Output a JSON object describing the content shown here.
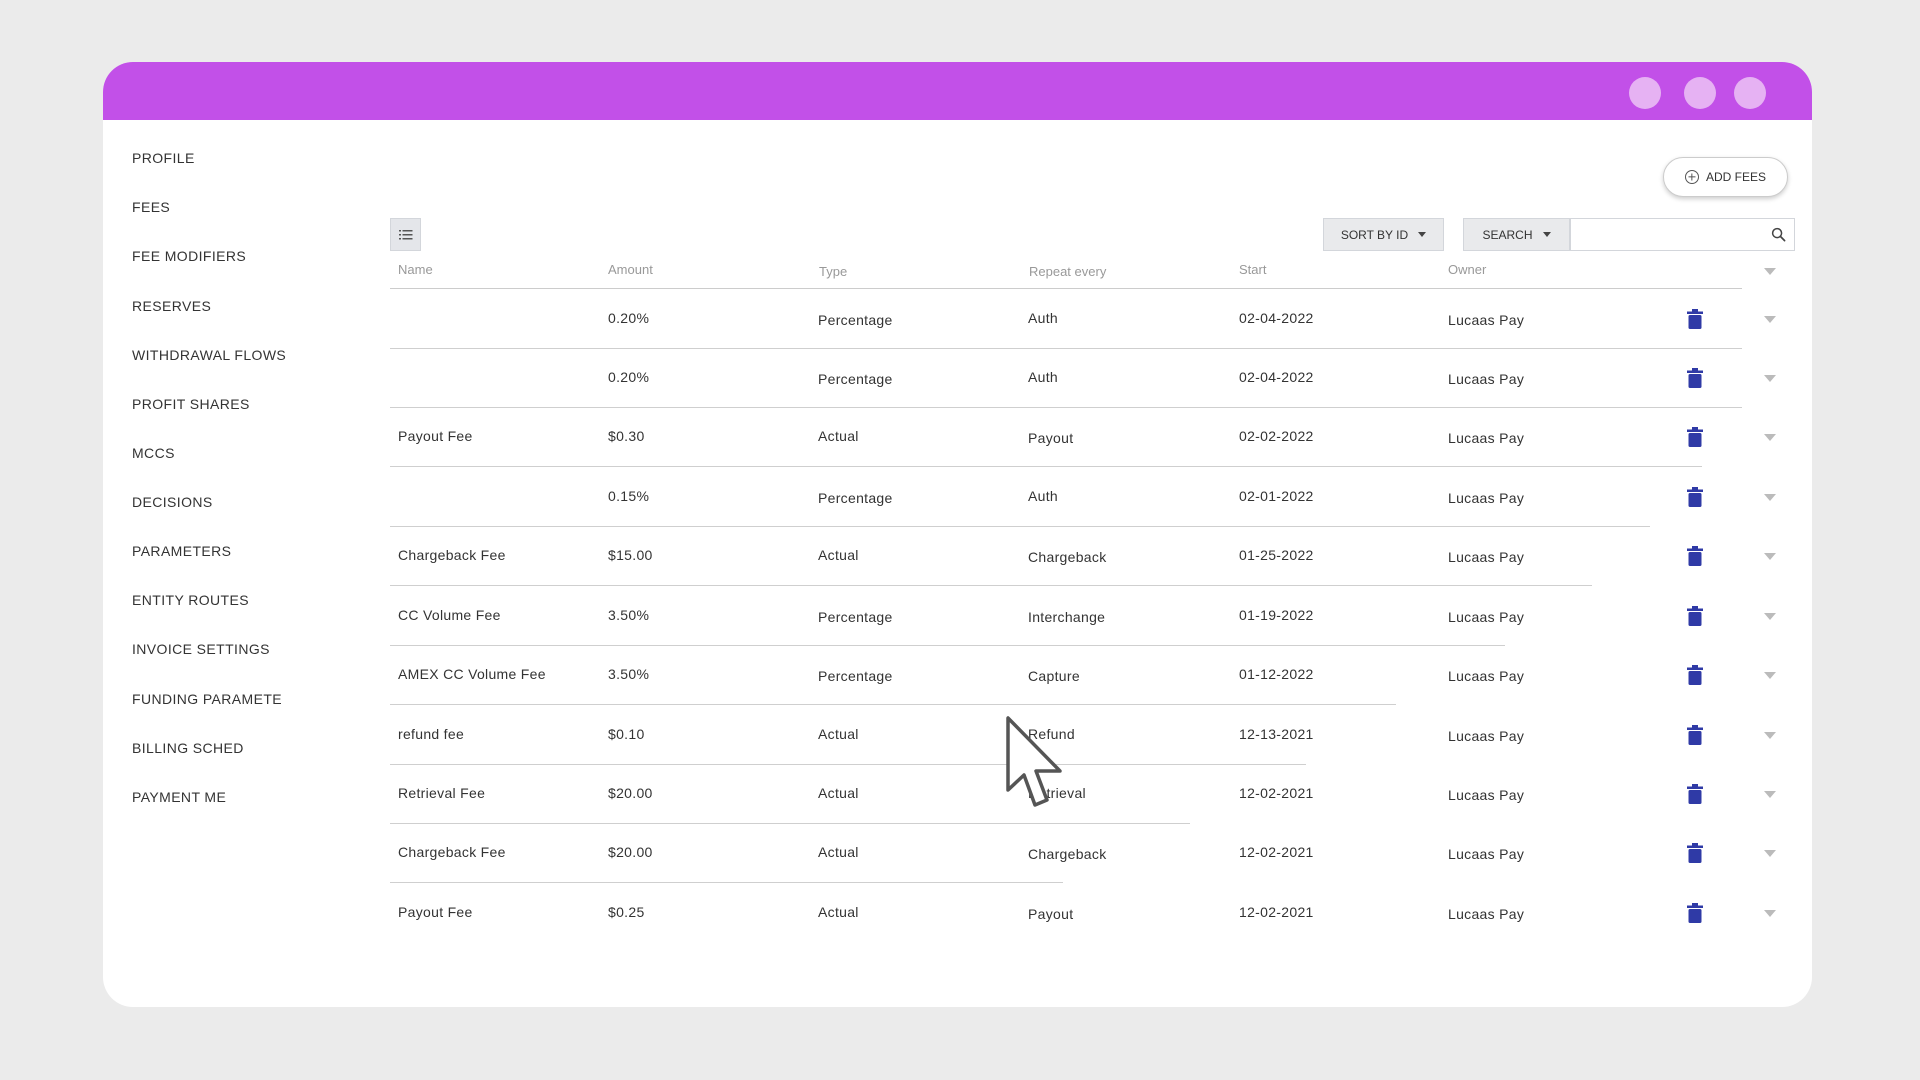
{
  "sidebar": {
    "items": [
      {
        "label": "PROFILE"
      },
      {
        "label": "FEES"
      },
      {
        "label": "FEE MODIFIERS"
      },
      {
        "label": "RESERVES"
      },
      {
        "label": "WITHDRAWAL FLOWS"
      },
      {
        "label": "PROFIT SHARES"
      },
      {
        "label": "MCCS"
      },
      {
        "label": "DECISIONS"
      },
      {
        "label": "PARAMETERS"
      },
      {
        "label": "ENTITY ROUTES"
      },
      {
        "label": "INVOICE SETTINGS"
      },
      {
        "label": "FUNDING PARAMETE"
      },
      {
        "label": "BILLING SCHED"
      },
      {
        "label": "PAYMENT ME"
      }
    ]
  },
  "toolbar": {
    "add_fees_label": "ADD FEES",
    "sort_label": "SORT BY ID",
    "search_label": "SEARCH",
    "search_value": ""
  },
  "table": {
    "columns": [
      "Name",
      "Amount",
      "Type",
      "Repeat every",
      "Start",
      "Owner"
    ],
    "rows": [
      {
        "name": "",
        "amount": "0.20%",
        "type": "Percentage",
        "repeat": "Auth",
        "start": "02-04-2022",
        "owner": "Lucaas Pay"
      },
      {
        "name": "",
        "amount": "0.20%",
        "type": "Percentage",
        "repeat": "Auth",
        "start": "02-04-2022",
        "owner": "Lucaas Pay"
      },
      {
        "name": "Payout Fee",
        "amount": "$0.30",
        "type": "Actual",
        "repeat": "Payout",
        "start": "02-02-2022",
        "owner": "Lucaas Pay"
      },
      {
        "name": "",
        "amount": "0.15%",
        "type": "Percentage",
        "repeat": "Auth",
        "start": "02-01-2022",
        "owner": "Lucaas Pay"
      },
      {
        "name": "Chargeback Fee",
        "amount": "$15.00",
        "type": "Actual",
        "repeat": "Chargeback",
        "start": "01-25-2022",
        "owner": "Lucaas Pay"
      },
      {
        "name": "CC Volume Fee",
        "amount": "3.50%",
        "type": "Percentage",
        "repeat": "Interchange",
        "start": "01-19-2022",
        "owner": "Lucaas Pay"
      },
      {
        "name": "AMEX CC Volume Fee",
        "amount": "3.50%",
        "type": "Percentage",
        "repeat": "Capture",
        "start": "01-12-2022",
        "owner": "Lucaas Pay"
      },
      {
        "name": "refund fee",
        "amount": "$0.10",
        "type": "Actual",
        "repeat": "Refund",
        "start": "12-13-2021",
        "owner": "Lucaas Pay"
      },
      {
        "name": "Retrieval Fee",
        "amount": "$20.00",
        "type": "Actual",
        "repeat": "Retrieval",
        "start": "12-02-2021",
        "owner": "Lucaas Pay"
      },
      {
        "name": "Chargeback Fee",
        "amount": "$20.00",
        "type": "Actual",
        "repeat": "Chargeback",
        "start": "12-02-2021",
        "owner": "Lucaas Pay"
      },
      {
        "name": "Payout Fee",
        "amount": "$0.25",
        "type": "Actual",
        "repeat": "Payout",
        "start": "12-02-2021",
        "owner": "Lucaas Pay"
      }
    ]
  },
  "icons": {
    "delete": "trash-icon",
    "expand": "chevron-down-icon",
    "list": "list-icon",
    "search": "search-icon",
    "add": "plus-circle-icon"
  },
  "colors": {
    "titlebar": "#c250e8",
    "window_dots": "#e6b2f3",
    "trash": "#2f3aa6"
  }
}
